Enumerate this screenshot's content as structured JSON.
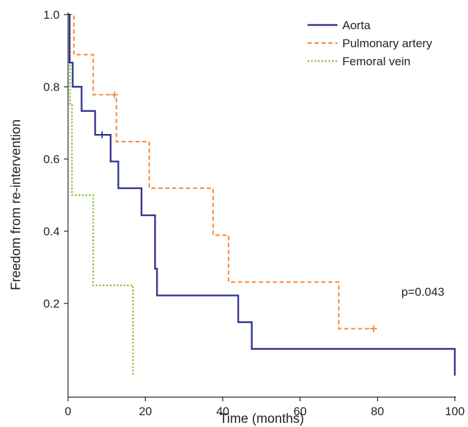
{
  "chart_data": {
    "type": "line",
    "subtype": "kaplan-meier step",
    "xlabel": "Time (months)",
    "ylabel": "Freedom from re-intervention",
    "xlim": [
      0,
      100
    ],
    "ylim": [
      0,
      1.0
    ],
    "xticks": [
      0,
      20,
      40,
      60,
      80,
      100
    ],
    "xtick_labels": [
      "0",
      "20",
      "40",
      "60",
      "80",
      "100"
    ],
    "yticks": [
      0.2,
      0.4,
      0.6,
      0.8,
      1.0
    ],
    "ytick_labels": [
      "0.2",
      "0.4",
      "0.6",
      "0.8",
      "1.0"
    ],
    "grid": false,
    "legend_position": "top-right",
    "annotation": "p=0.043",
    "series": [
      {
        "name": "Aorta",
        "color": "#2e3192",
        "style": "solid",
        "points": [
          [
            0,
            1.0
          ],
          [
            0.4,
            1.0
          ],
          [
            0.4,
            0.867
          ],
          [
            1.2,
            0.867
          ],
          [
            1.2,
            0.8
          ],
          [
            3.5,
            0.8
          ],
          [
            3.5,
            0.733
          ],
          [
            7.0,
            0.733
          ],
          [
            7.0,
            0.667
          ],
          [
            11.0,
            0.667
          ],
          [
            11.0,
            0.593
          ],
          [
            13.0,
            0.593
          ],
          [
            13.0,
            0.519
          ],
          [
            19.0,
            0.519
          ],
          [
            19.0,
            0.444
          ],
          [
            22.5,
            0.444
          ],
          [
            22.5,
            0.296
          ],
          [
            23.0,
            0.296
          ],
          [
            23.0,
            0.222
          ],
          [
            44.0,
            0.222
          ],
          [
            44.0,
            0.148
          ],
          [
            47.5,
            0.148
          ],
          [
            47.5,
            0.074
          ],
          [
            100,
            0.074
          ],
          [
            100,
            0
          ]
        ],
        "censored": [
          [
            8.8,
            0.667
          ]
        ]
      },
      {
        "name": "Pulmonary artery",
        "color": "#f58634",
        "style": "dashed",
        "points": [
          [
            0,
            1.0
          ],
          [
            1.5,
            1.0
          ],
          [
            1.5,
            0.889
          ],
          [
            6.5,
            0.889
          ],
          [
            6.5,
            0.778
          ],
          [
            12.5,
            0.778
          ],
          [
            12.5,
            0.648
          ],
          [
            21.0,
            0.648
          ],
          [
            21.0,
            0.519
          ],
          [
            37.5,
            0.519
          ],
          [
            37.5,
            0.389
          ],
          [
            41.5,
            0.389
          ],
          [
            41.5,
            0.259
          ],
          [
            70.0,
            0.259
          ],
          [
            70.0,
            0.13
          ],
          [
            79.5,
            0.13
          ]
        ],
        "censored": [
          [
            12.0,
            0.778
          ],
          [
            79.0,
            0.13
          ]
        ]
      },
      {
        "name": "Femoral vein",
        "color": "#8dc63f",
        "style": "dotted",
        "points": [
          [
            0,
            1.0
          ],
          [
            0.5,
            1.0
          ],
          [
            0.5,
            0.75
          ],
          [
            1.0,
            0.75
          ],
          [
            1.0,
            0.5
          ],
          [
            6.5,
            0.5
          ],
          [
            6.5,
            0.25
          ],
          [
            16.8,
            0.25
          ],
          [
            16.8,
            0
          ]
        ],
        "censored": []
      }
    ]
  }
}
